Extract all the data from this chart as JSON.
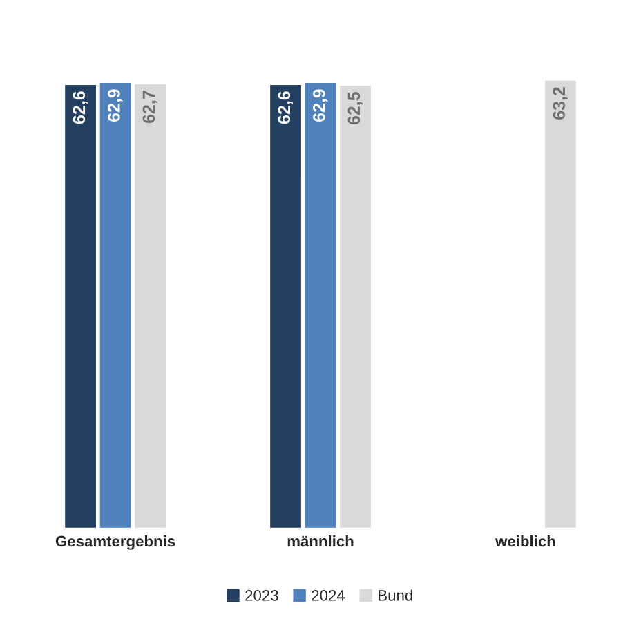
{
  "chart_data": {
    "type": "bar",
    "categories": [
      "Gesamtergebnis",
      "männlich",
      "weiblich"
    ],
    "series": [
      {
        "name": "2023",
        "color": "#243f60",
        "values": [
          62.6,
          62.6,
          null
        ],
        "value_labels": [
          "62,6",
          "62,6",
          null
        ]
      },
      {
        "name": "2024",
        "color": "#4f81bd",
        "values": [
          62.9,
          62.9,
          null
        ],
        "value_labels": [
          "62,9",
          "62,9",
          null
        ]
      },
      {
        "name": "Bund",
        "color": "#d9d9d9",
        "values": [
          62.7,
          62.5,
          63.2
        ],
        "value_labels": [
          "62,7",
          "62,5",
          "63,2"
        ]
      }
    ],
    "legend": "bottom",
    "grid": false
  }
}
